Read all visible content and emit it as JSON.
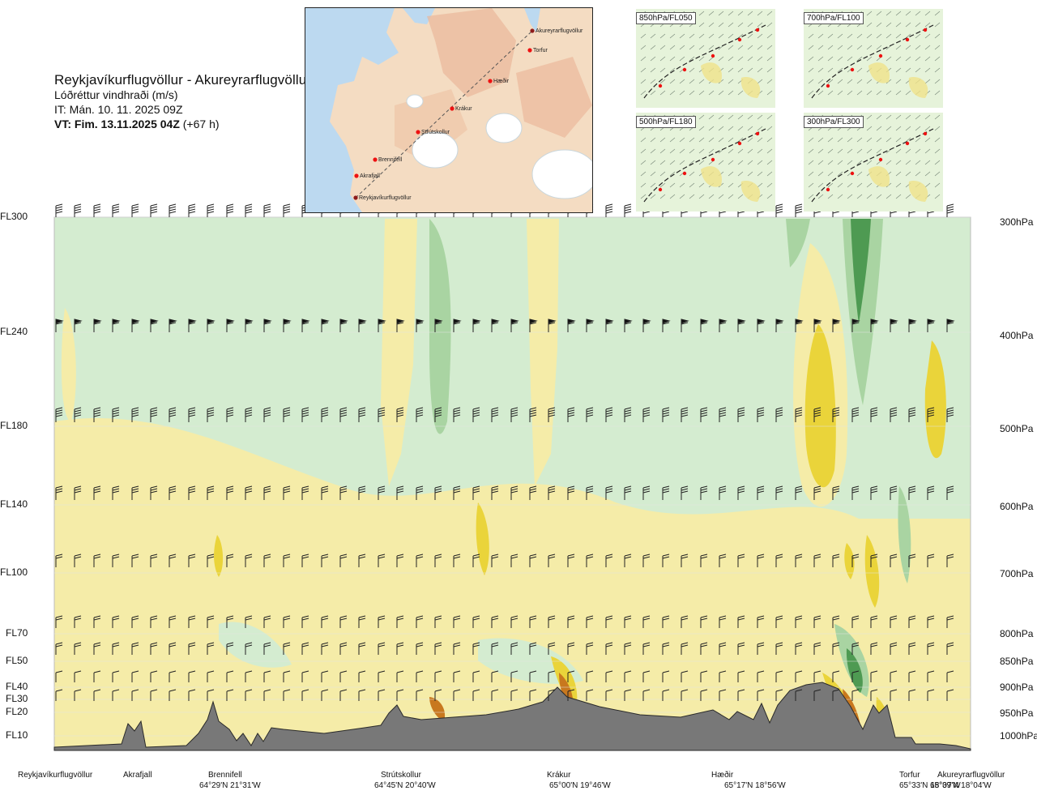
{
  "header": {
    "title": "Reykjavíkurflugvöllur - Akureyrarflugvöllur",
    "subtitle": "Lóðréttur vindhraði (m/s)",
    "issue": "IT: Mán. 10. 11. 2025 09Z",
    "valid_bold": "VT: Fim. 13.11.2025 04Z",
    "valid_suffix": "(+67 h)"
  },
  "map": {
    "waypoints": [
      "Akureyrarflugvöllur",
      "Torfur",
      "Hæðir",
      "Krákur",
      "Strútskollur",
      "Brennifell",
      "Akrafjall",
      "Reykjavíkurflugvöllur"
    ]
  },
  "thumbnails": [
    "850hPa/FL050",
    "700hPa/FL100",
    "500hPa/FL180",
    "300hPa/FL300"
  ],
  "colors": {
    "strong_up": "#4e9a52",
    "up": "#a9d4a2",
    "weak_up": "#d4ecd0",
    "neutral": "#fbfbe6",
    "weak_down": "#f5eca8",
    "down": "#ead43a",
    "strong_down": "#c8781e",
    "extreme_down": "#9c2a10",
    "terrain": "#787878"
  },
  "chart_data": {
    "type": "heatmap",
    "quantity": "Lóðréttur vindhraði (m/s)",
    "y_axis_fl_labels": [
      "FL300",
      "FL240",
      "FL180",
      "FL140",
      "FL100",
      "FL70",
      "FL50",
      "FL40",
      "FL30",
      "FL20",
      "FL10"
    ],
    "y_axis_pressure_labels": [
      "300hPa",
      "400hPa",
      "500hPa",
      "600hPa",
      "700hPa",
      "800hPa",
      "850hPa",
      "900hPa",
      "950hPa",
      "1000hPa"
    ],
    "wind_barb_levels": [
      "FL300",
      "FL240",
      "FL180",
      "FL140",
      "FL100",
      "FL70",
      "FL50",
      "FL40",
      "FL30"
    ],
    "route_points": [
      {
        "name": "Reykjavíkurflugvöllur",
        "coord": ""
      },
      {
        "name": "Akrafjall",
        "coord": ""
      },
      {
        "name": "Brennifell",
        "coord": "64°29'N 21°31'W"
      },
      {
        "name": "Strútskollur",
        "coord": "64°45'N 20°40'W"
      },
      {
        "name": "Krákur",
        "coord": "65°00'N 19°46'W"
      },
      {
        "name": "Hæðir",
        "coord": "65°17'N 18°56'W"
      },
      {
        "name": "Torfur",
        "coord": "65°33'N 18°07'W"
      },
      {
        "name": "Akureyrarflugvöllur",
        "coord": "65°39'N 18°04'W"
      }
    ]
  }
}
